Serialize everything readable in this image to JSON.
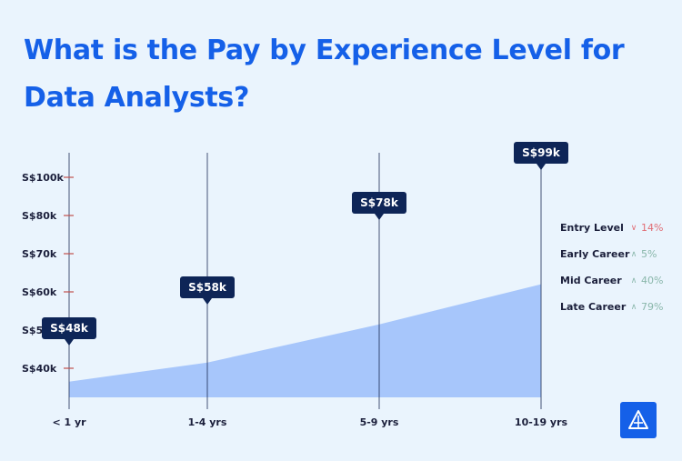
{
  "title": "What is the Pay by Experience Level for Data Analysts?",
  "chart_data": {
    "type": "area",
    "categories": [
      "< 1 yr",
      "1-4 yrs",
      "5-9 yrs",
      "10-19 yrs"
    ],
    "values": [
      48,
      58,
      78,
      99
    ],
    "data_labels": [
      "S$48k",
      "S$58k",
      "S$78k",
      "S$99k"
    ],
    "y_ticks": [
      {
        "value": 40,
        "label": "S$40k"
      },
      {
        "value": 50,
        "label": "S$50k"
      },
      {
        "value": 60,
        "label": "S$60k"
      },
      {
        "value": 70,
        "label": "S$70k"
      },
      {
        "value": 80,
        "label": "S$80k"
      },
      {
        "value": 100,
        "label": "S$100k"
      }
    ],
    "ylim": [
      30,
      110
    ],
    "grid": false,
    "legend_position": "right"
  },
  "legend": [
    {
      "label": "Entry Level",
      "direction": "down",
      "value": "14%"
    },
    {
      "label": "Early Career",
      "direction": "up",
      "value": "5%"
    },
    {
      "label": "Mid Career",
      "direction": "up",
      "value": "40%"
    },
    {
      "label": "Late Career",
      "direction": "up",
      "value": "79%"
    }
  ],
  "colors": {
    "background": "#eaf4fd",
    "title": "#1560e8",
    "area": "#a7c6fb",
    "callout": "#0e2557",
    "tick_mark": "#c0504d",
    "down": "#e06c74",
    "up": "#8ab7ab"
  },
  "logo": {
    "icon": "triangle-logo-icon"
  }
}
